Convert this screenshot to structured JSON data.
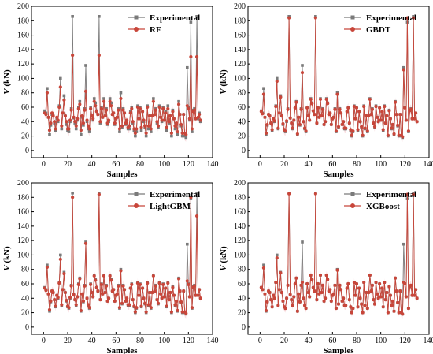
{
  "chart_data": [
    {
      "type": "line",
      "xlabel": "Samples",
      "ylabel_italic": "V",
      "ylabel_unit": " (kN)",
      "xlim": [
        -10,
        140
      ],
      "ylim": [
        -10,
        200
      ],
      "xticks": [
        0,
        20,
        40,
        60,
        80,
        100,
        120,
        140
      ],
      "yticks": [
        0,
        20,
        40,
        60,
        80,
        100,
        120,
        140,
        160,
        180,
        200
      ],
      "series": [
        {
          "name": "Experimental",
          "color": "#7a7a7a",
          "marker": "square",
          "values": [
            55,
            52,
            86,
            46,
            22,
            35,
            50,
            48,
            38,
            28,
            44,
            40,
            62,
            100,
            30,
            52,
            76,
            48,
            36,
            28,
            26,
            40,
            58,
            186,
            45,
            38,
            30,
            42,
            60,
            68,
            22,
            46,
            35,
            58,
            118,
            40,
            30,
            26,
            60,
            48,
            42,
            72,
            66,
            55,
            50,
            186,
            38,
            60,
            46,
            72,
            48,
            58,
            36,
            40,
            72,
            66,
            50,
            52,
            36,
            44,
            46,
            58,
            26,
            80,
            32,
            58,
            52,
            36,
            40,
            30,
            30,
            54,
            60,
            38,
            28,
            20,
            26,
            62,
            44,
            60,
            28,
            54,
            40,
            32,
            20,
            62,
            30,
            48,
            26,
            48,
            72,
            50,
            58,
            38,
            32,
            62,
            46,
            40,
            60,
            42,
            54,
            28,
            62,
            38,
            48,
            20,
            56,
            44,
            30,
            36,
            22,
            68,
            50,
            34,
            20,
            50,
            20,
            18,
            115,
            60,
            42,
            178,
            26,
            56,
            58,
            44,
            186,
            44,
            52,
            40
          ]
        },
        {
          "name": "RF",
          "color": "#c8463a",
          "marker": "circle",
          "values": [
            52,
            50,
            80,
            46,
            28,
            38,
            52,
            48,
            40,
            30,
            46,
            42,
            60,
            88,
            34,
            52,
            70,
            48,
            40,
            30,
            30,
            42,
            56,
            132,
            46,
            40,
            34,
            44,
            58,
            64,
            28,
            48,
            38,
            56,
            82,
            42,
            34,
            30,
            58,
            48,
            44,
            68,
            62,
            54,
            50,
            132,
            40,
            58,
            46,
            68,
            48,
            56,
            38,
            42,
            68,
            62,
            50,
            52,
            38,
            44,
            46,
            56,
            30,
            72,
            34,
            56,
            52,
            38,
            42,
            32,
            34,
            52,
            58,
            40,
            30,
            24,
            30,
            60,
            44,
            58,
            32,
            54,
            42,
            34,
            24,
            60,
            34,
            48,
            30,
            48,
            68,
            50,
            56,
            40,
            34,
            60,
            46,
            42,
            58,
            42,
            52,
            32,
            58,
            40,
            48,
            24,
            54,
            44,
            34,
            38,
            26,
            64,
            50,
            36,
            24,
            50,
            24,
            22,
            62,
            58,
            44,
            130,
            30,
            54,
            56,
            44,
            130,
            46,
            50,
            42
          ]
        }
      ]
    },
    {
      "type": "line",
      "xlabel": "Samples",
      "ylabel_italic": "V",
      "ylabel_unit": " (kN)",
      "xlim": [
        -10,
        140
      ],
      "ylim": [
        -10,
        200
      ],
      "xticks": [
        0,
        20,
        40,
        60,
        80,
        100,
        120,
        140
      ],
      "yticks": [
        0,
        20,
        40,
        60,
        80,
        100,
        120,
        140,
        160,
        180,
        200
      ],
      "series": [
        {
          "name": "Experimental",
          "color": "#7a7a7a",
          "marker": "square",
          "values": [
            55,
            52,
            86,
            46,
            22,
            35,
            50,
            48,
            38,
            28,
            44,
            40,
            62,
            100,
            30,
            52,
            76,
            48,
            36,
            28,
            26,
            40,
            58,
            186,
            45,
            38,
            30,
            42,
            60,
            68,
            22,
            46,
            35,
            58,
            118,
            40,
            30,
            26,
            60,
            48,
            42,
            72,
            66,
            55,
            50,
            186,
            38,
            60,
            46,
            72,
            48,
            58,
            36,
            40,
            72,
            66,
            50,
            52,
            36,
            44,
            46,
            58,
            26,
            80,
            32,
            58,
            52,
            36,
            40,
            30,
            30,
            54,
            60,
            38,
            28,
            20,
            26,
            62,
            44,
            60,
            28,
            54,
            40,
            32,
            20,
            62,
            30,
            48,
            26,
            48,
            72,
            50,
            58,
            38,
            32,
            62,
            46,
            40,
            60,
            42,
            54,
            28,
            62,
            38,
            48,
            20,
            56,
            44,
            30,
            36,
            22,
            68,
            50,
            34,
            20,
            50,
            20,
            18,
            115,
            60,
            42,
            178,
            26,
            56,
            58,
            44,
            186,
            44,
            52,
            40
          ]
        },
        {
          "name": "GBDT",
          "color": "#c8463a",
          "marker": "circle",
          "values": [
            54,
            51,
            78,
            46,
            24,
            36,
            50,
            48,
            38,
            29,
            44,
            41,
            61,
            96,
            31,
            52,
            74,
            48,
            37,
            29,
            27,
            41,
            57,
            184,
            45,
            38,
            31,
            42,
            59,
            67,
            23,
            46,
            36,
            57,
            108,
            40,
            31,
            27,
            59,
            48,
            42,
            71,
            65,
            55,
            50,
            184,
            38,
            59,
            46,
            71,
            48,
            57,
            36,
            40,
            71,
            65,
            50,
            52,
            36,
            44,
            46,
            57,
            27,
            78,
            33,
            57,
            52,
            36,
            40,
            31,
            31,
            54,
            59,
            38,
            29,
            21,
            27,
            61,
            44,
            59,
            29,
            54,
            40,
            33,
            21,
            61,
            31,
            48,
            27,
            48,
            71,
            50,
            57,
            38,
            33,
            61,
            46,
            40,
            59,
            42,
            54,
            29,
            61,
            38,
            48,
            21,
            55,
            44,
            31,
            36,
            23,
            67,
            50,
            35,
            21,
            50,
            21,
            19,
            112,
            59,
            42,
            184,
            27,
            55,
            57,
            44,
            184,
            44,
            52,
            40
          ]
        }
      ]
    },
    {
      "type": "line",
      "xlabel": "Samples",
      "ylabel_italic": "V",
      "ylabel_unit": " (kN)",
      "xlim": [
        -10,
        140
      ],
      "ylim": [
        -10,
        200
      ],
      "xticks": [
        0,
        20,
        40,
        60,
        80,
        100,
        120,
        140
      ],
      "yticks": [
        0,
        20,
        40,
        60,
        80,
        100,
        120,
        140,
        160,
        180,
        200
      ],
      "series": [
        {
          "name": "Experimental",
          "color": "#7a7a7a",
          "marker": "square",
          "values": [
            55,
            52,
            86,
            46,
            22,
            35,
            50,
            48,
            38,
            28,
            44,
            40,
            62,
            100,
            30,
            52,
            76,
            48,
            36,
            28,
            26,
            40,
            58,
            186,
            45,
            38,
            30,
            42,
            60,
            68,
            22,
            46,
            35,
            58,
            118,
            40,
            30,
            26,
            60,
            48,
            42,
            72,
            66,
            55,
            50,
            186,
            38,
            60,
            46,
            72,
            48,
            58,
            36,
            40,
            72,
            66,
            50,
            52,
            36,
            44,
            46,
            58,
            26,
            80,
            32,
            58,
            52,
            36,
            40,
            30,
            30,
            54,
            60,
            38,
            28,
            20,
            26,
            62,
            44,
            60,
            28,
            54,
            40,
            32,
            20,
            62,
            30,
            48,
            26,
            48,
            72,
            50,
            58,
            38,
            32,
            62,
            46,
            40,
            60,
            42,
            54,
            28,
            62,
            38,
            48,
            20,
            56,
            44,
            30,
            36,
            22,
            68,
            50,
            34,
            20,
            50,
            20,
            18,
            115,
            60,
            42,
            178,
            26,
            56,
            58,
            44,
            186,
            44,
            52,
            40
          ]
        },
        {
          "name": "LightGBM",
          "color": "#c8463a",
          "marker": "circle",
          "values": [
            54,
            51,
            83,
            46,
            24,
            36,
            50,
            48,
            38,
            29,
            44,
            41,
            61,
            94,
            31,
            52,
            74,
            48,
            37,
            29,
            27,
            41,
            57,
            180,
            45,
            38,
            31,
            42,
            59,
            67,
            23,
            46,
            36,
            57,
            116,
            40,
            31,
            27,
            59,
            48,
            42,
            71,
            65,
            55,
            50,
            184,
            38,
            59,
            46,
            71,
            48,
            57,
            36,
            40,
            71,
            65,
            50,
            52,
            36,
            44,
            46,
            57,
            27,
            78,
            33,
            57,
            52,
            36,
            40,
            31,
            31,
            54,
            59,
            38,
            29,
            21,
            27,
            61,
            44,
            59,
            29,
            54,
            40,
            33,
            21,
            61,
            31,
            48,
            27,
            48,
            71,
            50,
            57,
            38,
            33,
            61,
            46,
            40,
            59,
            42,
            54,
            29,
            61,
            38,
            48,
            21,
            55,
            44,
            31,
            36,
            23,
            67,
            50,
            35,
            21,
            50,
            21,
            19,
            64,
            59,
            42,
            180,
            27,
            55,
            57,
            44,
            154,
            44,
            52,
            40
          ]
        }
      ]
    },
    {
      "type": "line",
      "xlabel": "Samples",
      "ylabel_italic": "V",
      "ylabel_unit": " (kN)",
      "xlim": [
        -10,
        140
      ],
      "ylim": [
        -10,
        200
      ],
      "xticks": [
        0,
        20,
        40,
        60,
        80,
        100,
        120,
        140
      ],
      "yticks": [
        0,
        20,
        40,
        60,
        80,
        100,
        120,
        140,
        160,
        180,
        200
      ],
      "series": [
        {
          "name": "Experimental",
          "color": "#7a7a7a",
          "marker": "square",
          "values": [
            55,
            52,
            86,
            46,
            22,
            35,
            50,
            48,
            38,
            28,
            44,
            40,
            62,
            100,
            30,
            52,
            76,
            48,
            36,
            28,
            26,
            40,
            58,
            186,
            45,
            38,
            30,
            42,
            60,
            68,
            22,
            46,
            35,
            58,
            118,
            40,
            30,
            26,
            60,
            48,
            42,
            72,
            66,
            55,
            50,
            186,
            38,
            60,
            46,
            72,
            48,
            58,
            36,
            40,
            72,
            66,
            50,
            52,
            36,
            44,
            46,
            58,
            26,
            80,
            32,
            58,
            52,
            36,
            40,
            30,
            30,
            54,
            60,
            38,
            28,
            20,
            26,
            62,
            44,
            60,
            28,
            54,
            40,
            32,
            20,
            62,
            30,
            48,
            26,
            48,
            72,
            50,
            58,
            38,
            32,
            62,
            46,
            40,
            60,
            42,
            54,
            28,
            62,
            38,
            48,
            20,
            56,
            44,
            30,
            36,
            22,
            68,
            50,
            34,
            20,
            50,
            20,
            18,
            115,
            60,
            42,
            178,
            26,
            56,
            58,
            44,
            186,
            44,
            52,
            40
          ]
        },
        {
          "name": "XGBoost",
          "color": "#c8463a",
          "marker": "circle",
          "values": [
            55,
            52,
            82,
            46,
            23,
            35,
            50,
            48,
            38,
            28,
            44,
            40,
            62,
            96,
            30,
            52,
            75,
            48,
            36,
            28,
            26,
            40,
            58,
            185,
            45,
            38,
            30,
            42,
            60,
            68,
            22,
            46,
            35,
            58,
            62,
            40,
            30,
            26,
            60,
            48,
            42,
            72,
            66,
            55,
            50,
            185,
            38,
            60,
            46,
            72,
            48,
            58,
            36,
            40,
            72,
            66,
            50,
            52,
            36,
            44,
            46,
            58,
            26,
            79,
            32,
            58,
            52,
            36,
            40,
            30,
            30,
            54,
            60,
            38,
            28,
            20,
            26,
            62,
            44,
            60,
            28,
            54,
            40,
            32,
            20,
            62,
            30,
            48,
            26,
            48,
            72,
            50,
            58,
            38,
            32,
            62,
            46,
            40,
            60,
            42,
            54,
            28,
            62,
            38,
            48,
            20,
            56,
            44,
            30,
            36,
            22,
            68,
            50,
            34,
            20,
            50,
            20,
            18,
            62,
            60,
            42,
            184,
            26,
            56,
            58,
            44,
            184,
            44,
            52,
            40
          ]
        }
      ]
    }
  ]
}
